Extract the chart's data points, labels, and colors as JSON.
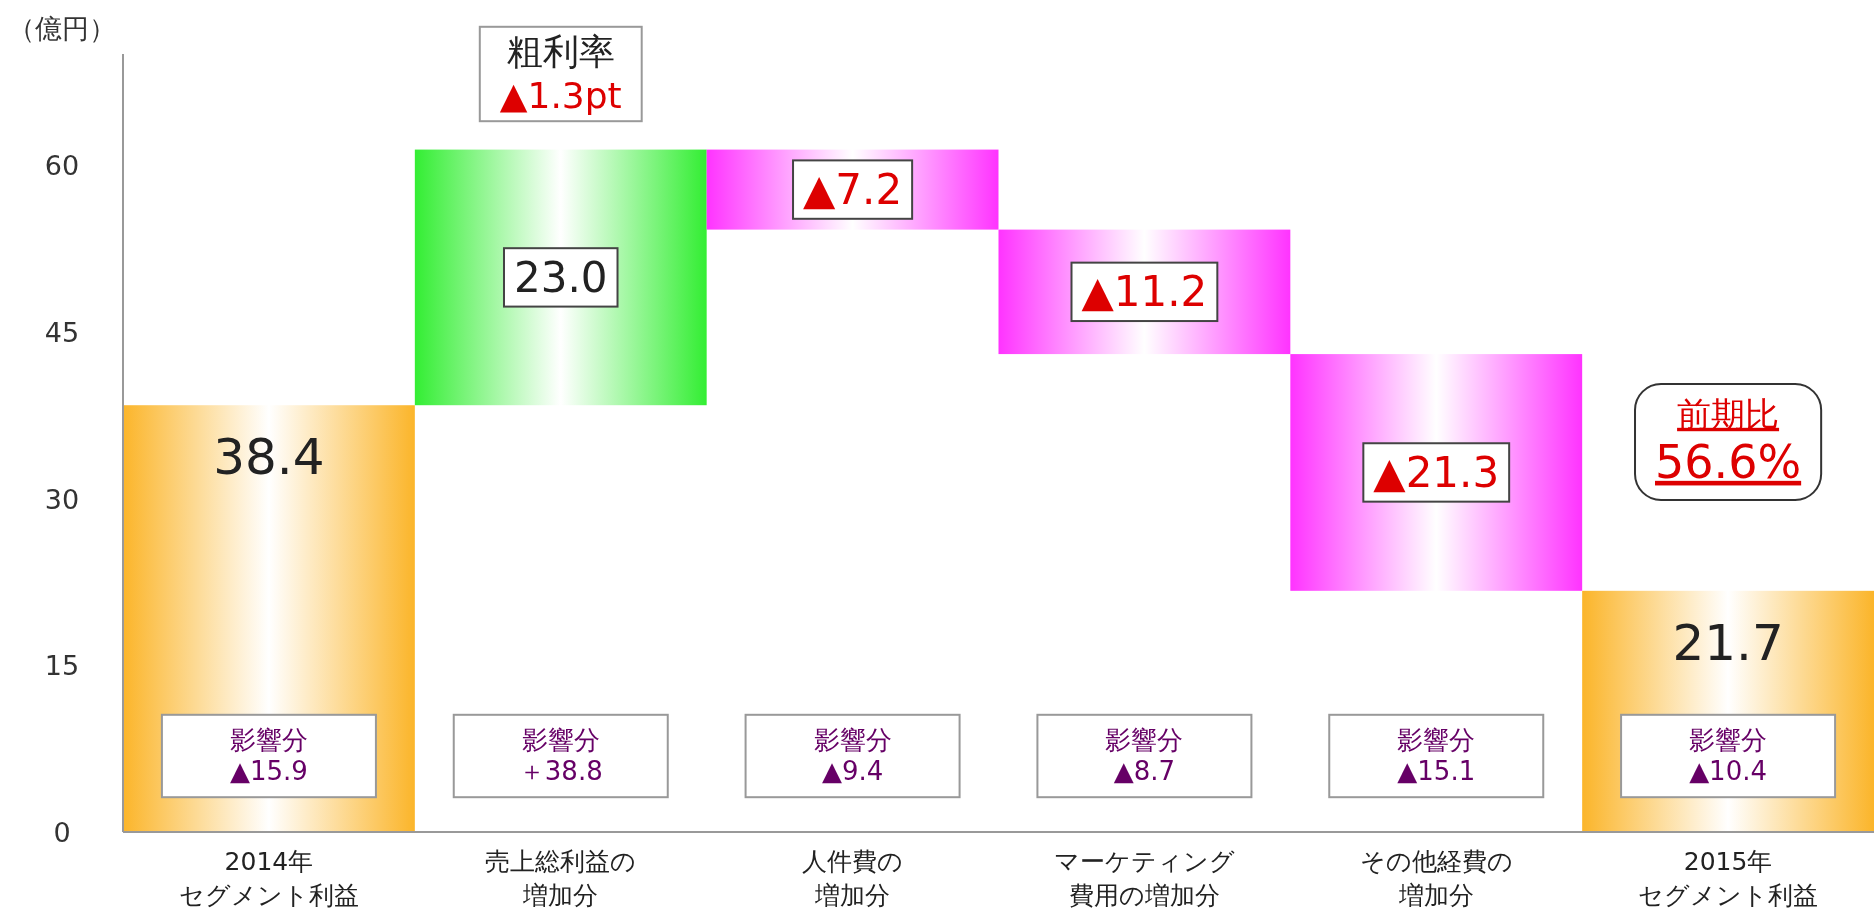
{
  "chart_data": {
    "type": "bar",
    "ylabel": "（億円）",
    "categories": [
      "2014年セグメント利益",
      "売上総利益の増加分",
      "人件費の増加分",
      "マーケティング費用の増加分",
      "その他経費の増加分",
      "2015年セグメント利益"
    ],
    "values": [
      38.4,
      23.0,
      -7.2,
      -11.2,
      -21.3,
      21.7
    ],
    "base": [
      0,
      38.4,
      61.4,
      54.2,
      43.0,
      0
    ],
    "colors": [
      "#fbb52a",
      "#33ee33",
      "#ff33ff",
      "#ff33ff",
      "#ff33ff",
      "#fbb52a"
    ],
    "value_labels": [
      "38.4",
      "23.0",
      "▲7.2",
      "▲11.2",
      "▲21.3",
      "21.7"
    ],
    "ylim": [
      0,
      70
    ],
    "yticks": [
      0,
      15,
      30,
      45,
      60
    ],
    "annotations": [
      "粗利率▲1.3pt",
      "前期比56.6%",
      "影響分▲15.9",
      "影響分＋38.8",
      "影響分▲9.4",
      "影響分▲8.7",
      "影響分▲15.1",
      "影響分▲10.4"
    ]
  }
}
